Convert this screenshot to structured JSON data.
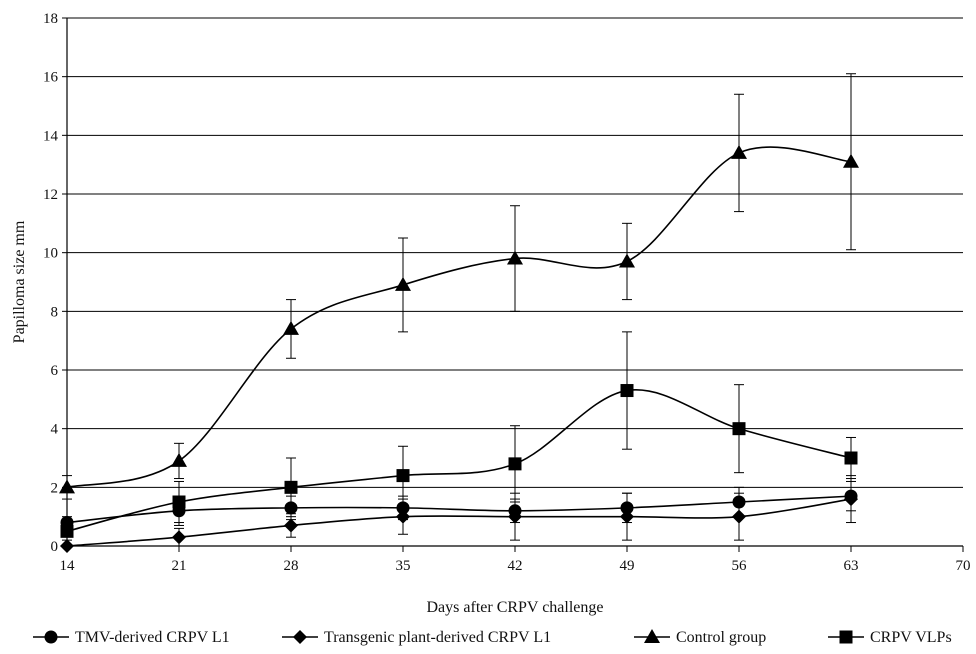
{
  "chart_data": {
    "type": "line",
    "title": "",
    "xlabel": "Days after CRPV challenge",
    "ylabel": "Papilloma size mm",
    "xlim": [
      14,
      70
    ],
    "ylim": [
      0,
      18
    ],
    "x_ticks": [
      14,
      21,
      28,
      35,
      42,
      49,
      56,
      63,
      70
    ],
    "y_ticks": [
      0,
      2,
      4,
      6,
      8,
      10,
      12,
      14,
      16,
      18
    ],
    "grid": "horizontal",
    "legend_position": "bottom",
    "x": [
      14,
      21,
      28,
      35,
      42,
      49,
      56,
      63
    ],
    "series": [
      {
        "name": "TMV-derived CRPV L1",
        "marker": "circle",
        "values": [
          0.8,
          1.2,
          1.3,
          1.3,
          1.2,
          1.3,
          1.5,
          1.7
        ],
        "errors": [
          0.2,
          0.5,
          0.4,
          0.4,
          0.4,
          0.5,
          0.5,
          0.5
        ]
      },
      {
        "name": "Transgenic plant-derived CRPV L1",
        "marker": "diamond",
        "values": [
          0.0,
          0.3,
          0.7,
          1.0,
          1.0,
          1.0,
          1.0,
          1.6
        ],
        "errors": [
          0.0,
          0.3,
          0.4,
          0.6,
          0.8,
          0.8,
          0.8,
          0.8
        ]
      },
      {
        "name": "Control group",
        "marker": "triangle",
        "values": [
          2.0,
          2.9,
          7.4,
          8.9,
          9.8,
          9.7,
          13.4,
          13.1
        ],
        "errors": [
          0.4,
          0.6,
          1.0,
          1.6,
          1.8,
          1.3,
          2.0,
          3.0
        ]
      },
      {
        "name": "CRPV VLPs",
        "marker": "square",
        "values": [
          0.5,
          1.5,
          2.0,
          2.4,
          2.8,
          5.3,
          4.0,
          3.0
        ],
        "errors": [
          0.3,
          0.7,
          1.0,
          1.0,
          1.3,
          2.0,
          1.5,
          0.7
        ]
      }
    ]
  }
}
